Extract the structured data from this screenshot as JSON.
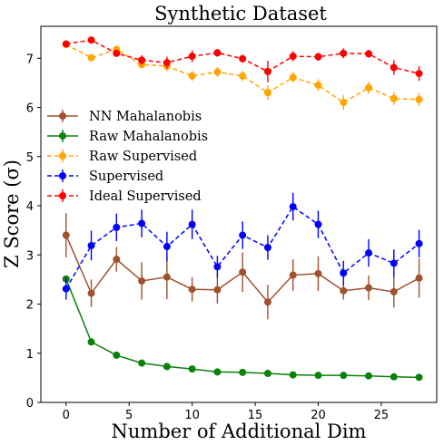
{
  "chart_data": {
    "type": "line",
    "title": "Synthetic Dataset",
    "xlabel": "Number of Additional Dim",
    "ylabel": "Z Score (σ)",
    "xlim": [
      -2,
      29.4
    ],
    "ylim": [
      0,
      7.65
    ],
    "xticks": [
      0,
      5,
      10,
      15,
      20,
      25
    ],
    "yticks": [
      0,
      1,
      2,
      3,
      4,
      5,
      6,
      7
    ],
    "grid": false,
    "legend_position": "center-left",
    "x": [
      0,
      2,
      4,
      6,
      8,
      10,
      12,
      14,
      16,
      18,
      20,
      22,
      24,
      26,
      28
    ],
    "series": [
      {
        "name": "NN Mahalanobis",
        "color": "#a0522d",
        "linestyle": "solid",
        "values": [
          3.4,
          2.22,
          2.91,
          2.47,
          2.55,
          2.3,
          2.29,
          2.65,
          2.04,
          2.59,
          2.62,
          2.27,
          2.33,
          2.25,
          2.53
        ],
        "errors": [
          0.45,
          0.28,
          0.25,
          0.38,
          0.45,
          0.25,
          0.28,
          0.4,
          0.35,
          0.32,
          0.35,
          0.18,
          0.25,
          0.32,
          0.4
        ]
      },
      {
        "name": "Raw Mahalanobis",
        "color": "#0a820a",
        "linestyle": "solid",
        "values": [
          2.51,
          1.23,
          0.96,
          0.8,
          0.73,
          0.68,
          0.62,
          0.61,
          0.59,
          0.56,
          0.55,
          0.55,
          0.54,
          0.52,
          0.51
        ],
        "errors": [
          0.06,
          0.02,
          0.02,
          0.02,
          0.02,
          0.02,
          0.02,
          0.02,
          0.02,
          0.02,
          0.02,
          0.02,
          0.02,
          0.02,
          0.02
        ]
      },
      {
        "name": "Raw Supervised",
        "color": "#ffa500",
        "linestyle": "dashed",
        "values": [
          7.28,
          7.01,
          7.18,
          6.87,
          6.84,
          6.64,
          6.72,
          6.64,
          6.3,
          6.61,
          6.45,
          6.1,
          6.4,
          6.18,
          6.16
        ],
        "errors": [
          0.05,
          0.07,
          0.06,
          0.07,
          0.1,
          0.1,
          0.1,
          0.1,
          0.15,
          0.1,
          0.12,
          0.15,
          0.12,
          0.13,
          0.13
        ]
      },
      {
        "name": "Supervised",
        "color": "#0000ff",
        "linestyle": "dashed",
        "values": [
          2.31,
          3.19,
          3.56,
          3.64,
          3.17,
          3.62,
          2.76,
          3.4,
          3.15,
          3.98,
          3.62,
          2.63,
          3.04,
          2.83,
          3.23
        ],
        "errors": [
          0.22,
          0.3,
          0.28,
          0.28,
          0.3,
          0.3,
          0.22,
          0.28,
          0.25,
          0.28,
          0.28,
          0.25,
          0.28,
          0.28,
          0.28
        ]
      },
      {
        "name": "Ideal Supervised",
        "color": "#ff0000",
        "linestyle": "dashed",
        "values": [
          7.29,
          7.37,
          7.1,
          6.96,
          6.91,
          7.04,
          7.11,
          6.99,
          6.73,
          7.04,
          7.03,
          7.1,
          7.09,
          6.81,
          6.69
        ],
        "errors": [
          0.04,
          0.06,
          0.06,
          0.1,
          0.12,
          0.12,
          0.08,
          0.08,
          0.22,
          0.1,
          0.08,
          0.1,
          0.08,
          0.15,
          0.15
        ]
      }
    ]
  }
}
